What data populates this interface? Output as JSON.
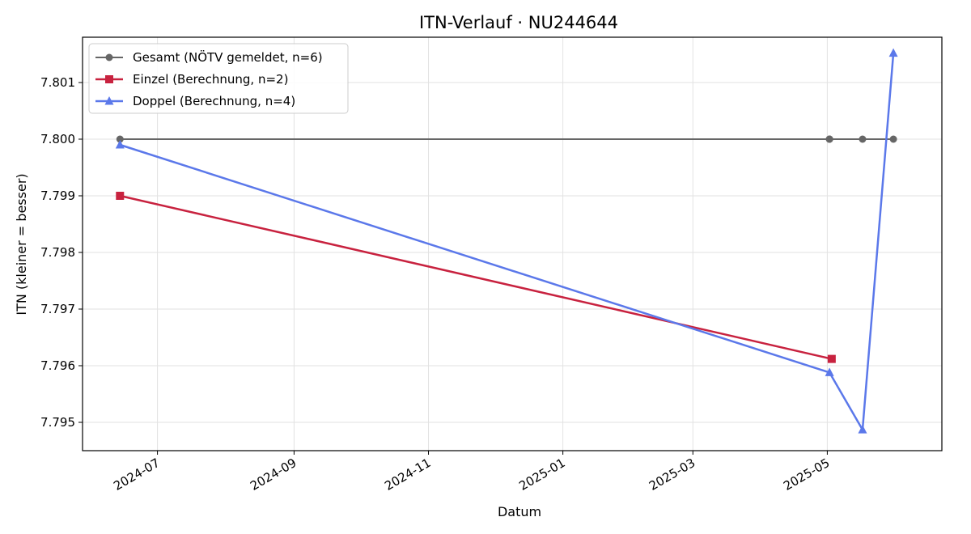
{
  "chart_data": {
    "type": "line",
    "title": "ITN-Verlauf · NU244644",
    "xlabel": "Datum",
    "ylabel": "ITN  (kleiner = besser)",
    "xlim": [
      "2024-05-28",
      "2025-06-22"
    ],
    "ylim": [
      7.7945,
      7.8018
    ],
    "x_ticks": [
      "2024-07",
      "2024-09",
      "2024-11",
      "2025-01",
      "2025-03",
      "2025-05"
    ],
    "y_ticks": [
      "7.795",
      "7.796",
      "7.797",
      "7.798",
      "7.799",
      "7.800",
      "7.801"
    ],
    "grid": true,
    "legend_position": "top-left",
    "series": [
      {
        "name": "Gesamt (NÖTV gemeldet, n=6)",
        "color": "#666666",
        "marker": "circle",
        "points": [
          {
            "x": "2024-06-14",
            "y": 7.8
          },
          {
            "x": "2025-05-02",
            "y": 7.8
          },
          {
            "x": "2025-05-02",
            "y": 7.8
          },
          {
            "x": "2025-05-02",
            "y": 7.8
          },
          {
            "x": "2025-05-17",
            "y": 7.8
          },
          {
            "x": "2025-05-31",
            "y": 7.8
          }
        ]
      },
      {
        "name": "Einzel (Berechnung, n=2)",
        "color": "#c8223f",
        "marker": "square",
        "points": [
          {
            "x": "2024-06-14",
            "y": 7.799
          },
          {
            "x": "2025-05-03",
            "y": 7.79612
          }
        ]
      },
      {
        "name": "Doppel (Berechnung, n=4)",
        "color": "#5b78ea",
        "marker": "triangle",
        "points": [
          {
            "x": "2024-06-14",
            "y": 7.7999
          },
          {
            "x": "2025-05-02",
            "y": 7.79588
          },
          {
            "x": "2025-05-17",
            "y": 7.79487
          },
          {
            "x": "2025-05-31",
            "y": 7.80152
          }
        ]
      }
    ]
  }
}
